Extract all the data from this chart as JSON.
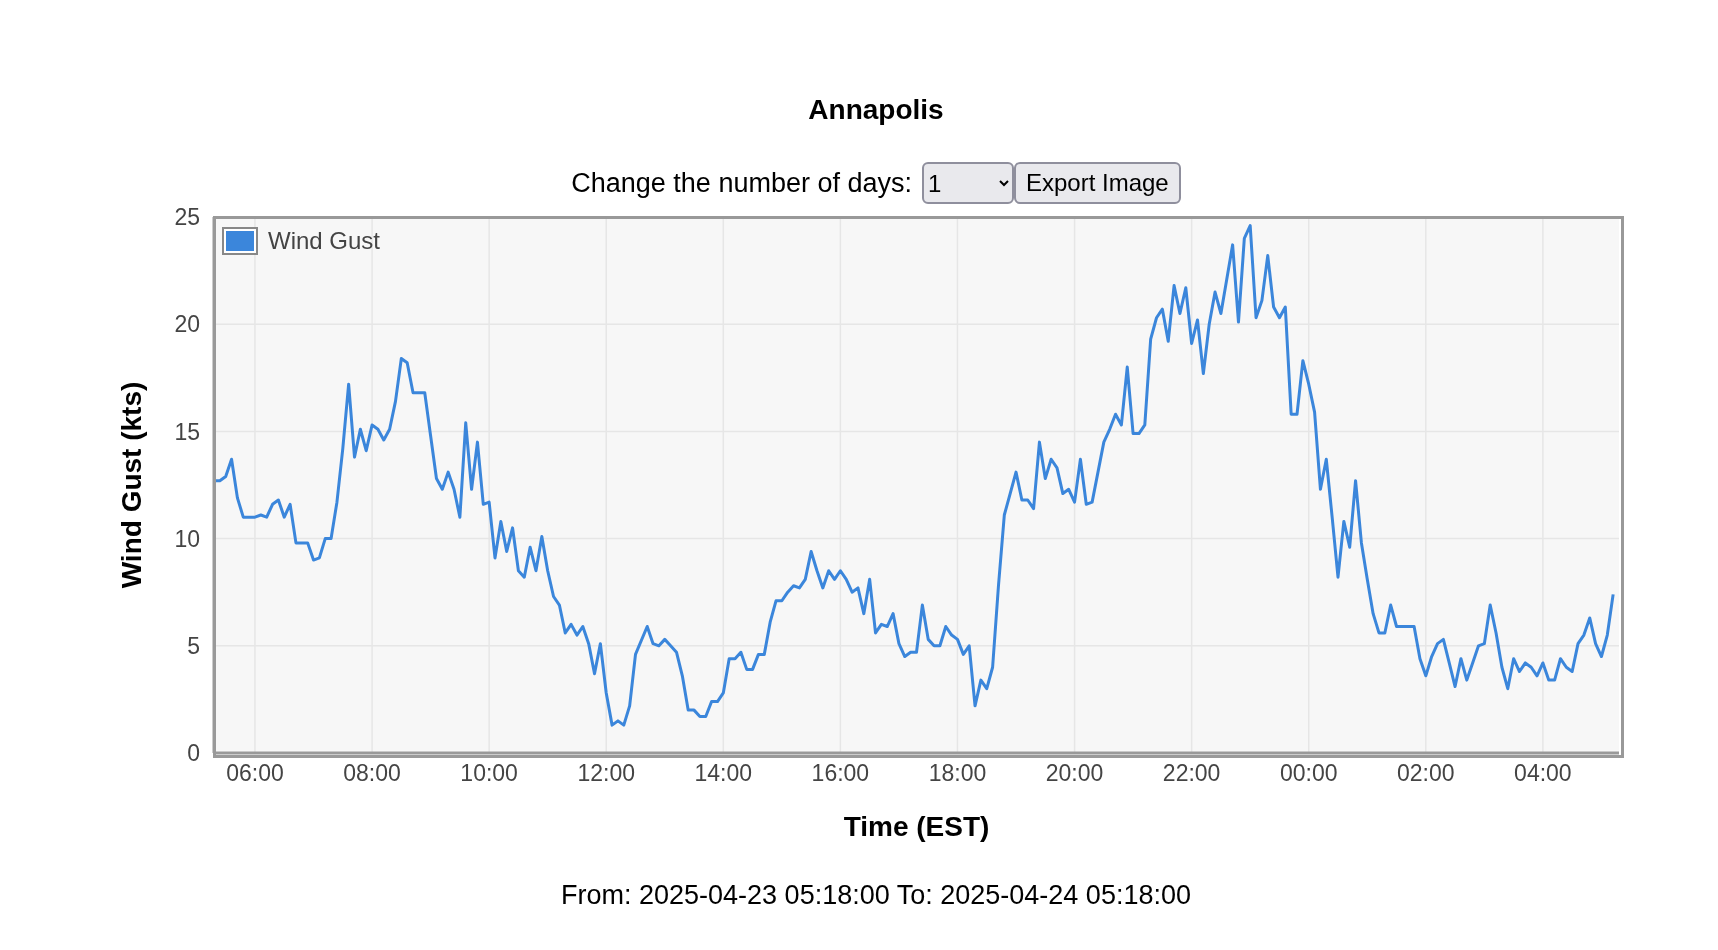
{
  "chart_data": {
    "type": "line",
    "title": "Annapolis",
    "xlabel": "Time (EST)",
    "ylabel": "Wind Gust (kts)",
    "annotations": [
      "Change the number of days:",
      "1",
      "Export Image",
      "From: 2025-04-23 05:18:00 To: 2025-04-24 05:18:00"
    ],
    "xlim": [
      "2025-04-23T05:18",
      "2025-04-24T05:18"
    ],
    "xticks": [
      {
        "value": "2025-04-23T06:00",
        "label": "06:00"
      },
      {
        "value": "2025-04-23T08:00",
        "label": "08:00"
      },
      {
        "value": "2025-04-23T10:00",
        "label": "10:00"
      },
      {
        "value": "2025-04-23T12:00",
        "label": "12:00"
      },
      {
        "value": "2025-04-23T14:00",
        "label": "14:00"
      },
      {
        "value": "2025-04-23T16:00",
        "label": "16:00"
      },
      {
        "value": "2025-04-23T18:00",
        "label": "18:00"
      },
      {
        "value": "2025-04-23T20:00",
        "label": "20:00"
      },
      {
        "value": "2025-04-23T22:00",
        "label": "22:00"
      },
      {
        "value": "2025-04-24T00:00",
        "label": "00:00"
      },
      {
        "value": "2025-04-24T02:00",
        "label": "02:00"
      },
      {
        "value": "2025-04-24T04:00",
        "label": "04:00"
      }
    ],
    "ylim": [
      0,
      25
    ],
    "yticks": [
      0,
      5,
      10,
      15,
      20,
      25
    ],
    "grid": true,
    "legend": "top left",
    "marker": "none",
    "line_style": "solid",
    "series": [
      {
        "name": "Wind Gust",
        "color": "#3b86db",
        "x": [
          "2025-04-23T05:18",
          "2025-04-23T05:24",
          "2025-04-23T05:30",
          "2025-04-23T05:36",
          "2025-04-23T05:42",
          "2025-04-23T05:48",
          "2025-04-23T06:00",
          "2025-04-23T06:06",
          "2025-04-23T06:12",
          "2025-04-23T06:18",
          "2025-04-23T06:24",
          "2025-04-23T06:30",
          "2025-04-23T06:36",
          "2025-04-23T06:42",
          "2025-04-23T06:54",
          "2025-04-23T07:00",
          "2025-04-23T07:06",
          "2025-04-23T07:12",
          "2025-04-23T07:18",
          "2025-04-23T07:24",
          "2025-04-23T07:30",
          "2025-04-23T07:36",
          "2025-04-23T07:42",
          "2025-04-23T07:48",
          "2025-04-23T07:54",
          "2025-04-23T08:00",
          "2025-04-23T08:06",
          "2025-04-23T08:12",
          "2025-04-23T08:18",
          "2025-04-23T08:24",
          "2025-04-23T08:30",
          "2025-04-23T08:36",
          "2025-04-23T08:42",
          "2025-04-23T08:54",
          "2025-04-23T09:00",
          "2025-04-23T09:06",
          "2025-04-23T09:12",
          "2025-04-23T09:18",
          "2025-04-23T09:24",
          "2025-04-23T09:30",
          "2025-04-23T09:36",
          "2025-04-23T09:42",
          "2025-04-23T09:48",
          "2025-04-23T09:54",
          "2025-04-23T10:00",
          "2025-04-23T10:06",
          "2025-04-23T10:12",
          "2025-04-23T10:18",
          "2025-04-23T10:24",
          "2025-04-23T10:30",
          "2025-04-23T10:36",
          "2025-04-23T10:42",
          "2025-04-23T10:48",
          "2025-04-23T10:54",
          "2025-04-23T11:00",
          "2025-04-23T11:06",
          "2025-04-23T11:12",
          "2025-04-23T11:18",
          "2025-04-23T11:24",
          "2025-04-23T11:30",
          "2025-04-23T11:36",
          "2025-04-23T11:42",
          "2025-04-23T11:48",
          "2025-04-23T11:54",
          "2025-04-23T12:00",
          "2025-04-23T12:06",
          "2025-04-23T12:12",
          "2025-04-23T12:18",
          "2025-04-23T12:24",
          "2025-04-23T12:30",
          "2025-04-23T12:42",
          "2025-04-23T12:48",
          "2025-04-23T12:54",
          "2025-04-23T13:00",
          "2025-04-23T13:06",
          "2025-04-23T13:12",
          "2025-04-23T13:18",
          "2025-04-23T13:24",
          "2025-04-23T13:30",
          "2025-04-23T13:36",
          "2025-04-23T13:42",
          "2025-04-23T13:48",
          "2025-04-23T13:54",
          "2025-04-23T14:00",
          "2025-04-23T14:06",
          "2025-04-23T14:12",
          "2025-04-23T14:18",
          "2025-04-23T14:24",
          "2025-04-23T14:30",
          "2025-04-23T14:36",
          "2025-04-23T14:42",
          "2025-04-23T14:48",
          "2025-04-23T14:54",
          "2025-04-23T15:00",
          "2025-04-23T15:06",
          "2025-04-23T15:12",
          "2025-04-23T15:18",
          "2025-04-23T15:24",
          "2025-04-23T15:30",
          "2025-04-23T15:36",
          "2025-04-23T15:42",
          "2025-04-23T15:48",
          "2025-04-23T15:54",
          "2025-04-23T16:00",
          "2025-04-23T16:06",
          "2025-04-23T16:12",
          "2025-04-23T16:18",
          "2025-04-23T16:24",
          "2025-04-23T16:30",
          "2025-04-23T16:36",
          "2025-04-23T16:42",
          "2025-04-23T16:48",
          "2025-04-23T16:54",
          "2025-04-23T17:00",
          "2025-04-23T17:06",
          "2025-04-23T17:12",
          "2025-04-23T17:18",
          "2025-04-23T17:24",
          "2025-04-23T17:30",
          "2025-04-23T17:36",
          "2025-04-23T17:42",
          "2025-04-23T17:48",
          "2025-04-23T17:54",
          "2025-04-23T18:00",
          "2025-04-23T18:06",
          "2025-04-23T18:12",
          "2025-04-23T18:18",
          "2025-04-23T18:24",
          "2025-04-23T18:30",
          "2025-04-23T18:36",
          "2025-04-23T18:42",
          "2025-04-23T18:48",
          "2025-04-23T18:54",
          "2025-04-23T19:00",
          "2025-04-23T19:06",
          "2025-04-23T19:12",
          "2025-04-23T19:18",
          "2025-04-23T19:24",
          "2025-04-23T19:30",
          "2025-04-23T19:36",
          "2025-04-23T19:42",
          "2025-04-23T19:48",
          "2025-04-23T19:54",
          "2025-04-23T20:00",
          "2025-04-23T20:06",
          "2025-04-23T20:12",
          "2025-04-23T20:18",
          "2025-04-23T20:24",
          "2025-04-23T20:30",
          "2025-04-23T20:36",
          "2025-04-23T20:42",
          "2025-04-23T20:48",
          "2025-04-23T20:54",
          "2025-04-23T21:00",
          "2025-04-23T21:06",
          "2025-04-23T21:12",
          "2025-04-23T21:18",
          "2025-04-23T21:24",
          "2025-04-23T21:30",
          "2025-04-23T21:36",
          "2025-04-23T21:42",
          "2025-04-23T21:48",
          "2025-04-23T21:54",
          "2025-04-23T22:00",
          "2025-04-23T22:06",
          "2025-04-23T22:12",
          "2025-04-23T22:18",
          "2025-04-23T22:24",
          "2025-04-23T22:30",
          "2025-04-23T22:36",
          "2025-04-23T22:42",
          "2025-04-23T22:48",
          "2025-04-23T22:54",
          "2025-04-23T23:00",
          "2025-04-23T23:06",
          "2025-04-23T23:12",
          "2025-04-23T23:18",
          "2025-04-23T23:24",
          "2025-04-23T23:30",
          "2025-04-23T23:36",
          "2025-04-23T23:42",
          "2025-04-23T23:48",
          "2025-04-23T23:54",
          "2025-04-24T00:00",
          "2025-04-24T00:06",
          "2025-04-24T00:12",
          "2025-04-24T00:18",
          "2025-04-24T00:24",
          "2025-04-24T00:30",
          "2025-04-24T00:36",
          "2025-04-24T00:42",
          "2025-04-24T00:48",
          "2025-04-24T00:54",
          "2025-04-24T01:00",
          "2025-04-24T01:06",
          "2025-04-24T01:12",
          "2025-04-24T01:18",
          "2025-04-24T01:24",
          "2025-04-24T01:30",
          "2025-04-24T01:36",
          "2025-04-24T01:42",
          "2025-04-24T01:48",
          "2025-04-24T01:54",
          "2025-04-24T02:00",
          "2025-04-24T02:06",
          "2025-04-24T02:12",
          "2025-04-24T02:18",
          "2025-04-24T02:24",
          "2025-04-24T02:30",
          "2025-04-24T02:36",
          "2025-04-24T02:42",
          "2025-04-24T02:48",
          "2025-04-24T02:54",
          "2025-04-24T03:00",
          "2025-04-24T03:06",
          "2025-04-24T03:12",
          "2025-04-24T03:18",
          "2025-04-24T03:24",
          "2025-04-24T03:30",
          "2025-04-24T03:36",
          "2025-04-24T03:42",
          "2025-04-24T03:48",
          "2025-04-24T03:54",
          "2025-04-24T04:00",
          "2025-04-24T04:06",
          "2025-04-24T04:12",
          "2025-04-24T04:18",
          "2025-04-24T04:24",
          "2025-04-24T04:30",
          "2025-04-24T04:36",
          "2025-04-24T04:42",
          "2025-04-24T04:48",
          "2025-04-24T04:54",
          "2025-04-24T05:00",
          "2025-04-24T05:06",
          "2025-04-24T05:12"
        ],
        "values": [
          12.7,
          12.7,
          12.9,
          13.7,
          11.9,
          11.0,
          11.0,
          11.1,
          11.0,
          11.6,
          11.8,
          11.0,
          11.6,
          9.8,
          9.8,
          9.0,
          9.1,
          10.0,
          10.0,
          11.7,
          14.2,
          17.2,
          13.8,
          15.1,
          14.1,
          15.3,
          15.1,
          14.6,
          15.1,
          16.4,
          18.4,
          18.2,
          16.8,
          16.8,
          14.8,
          12.8,
          12.3,
          13.1,
          12.3,
          11.0,
          15.4,
          12.3,
          14.5,
          11.6,
          11.7,
          9.1,
          10.8,
          9.4,
          10.5,
          8.5,
          8.2,
          9.6,
          8.5,
          10.1,
          8.5,
          7.3,
          6.9,
          5.6,
          6.0,
          5.5,
          5.9,
          5.1,
          3.7,
          5.1,
          2.8,
          1.3,
          1.5,
          1.3,
          2.2,
          4.6,
          5.9,
          5.1,
          5.0,
          5.3,
          5.0,
          4.7,
          3.6,
          2.0,
          2.0,
          1.7,
          1.7,
          2.4,
          2.4,
          2.8,
          4.4,
          4.4,
          4.7,
          3.9,
          3.9,
          4.6,
          4.6,
          6.1,
          7.1,
          7.1,
          7.5,
          7.8,
          7.7,
          8.1,
          9.4,
          8.5,
          7.7,
          8.5,
          8.1,
          8.5,
          8.1,
          7.5,
          7.7,
          6.5,
          8.1,
          5.6,
          6.0,
          5.9,
          6.5,
          5.1,
          4.5,
          4.7,
          4.7,
          6.9,
          5.3,
          5.0,
          5.0,
          5.9,
          5.5,
          5.3,
          4.6,
          5.0,
          2.2,
          3.4,
          3.0,
          4.0,
          7.8,
          11.1,
          12.1,
          13.1,
          11.8,
          11.8,
          11.4,
          14.5,
          12.8,
          13.7,
          13.3,
          12.1,
          12.3,
          11.7,
          13.7,
          11.6,
          11.7,
          13.1,
          14.5,
          15.1,
          15.8,
          15.3,
          18.0,
          14.9,
          14.9,
          15.3,
          19.3,
          20.3,
          20.7,
          19.2,
          21.8,
          20.5,
          21.7,
          19.1,
          20.2,
          17.7,
          20.0,
          21.5,
          20.5,
          22.1,
          23.7,
          20.1,
          24.0,
          24.6,
          20.3,
          21.1,
          23.2,
          20.8,
          20.3,
          20.8,
          15.8,
          15.8,
          18.3,
          17.2,
          15.9,
          12.3,
          13.7,
          11.0,
          8.2,
          10.8,
          9.6,
          12.7,
          9.8,
          8.1,
          6.5,
          5.6,
          5.6,
          6.9,
          5.9,
          5.9,
          5.9,
          5.9,
          4.4,
          3.6,
          4.5,
          5.1,
          5.3,
          4.2,
          3.1,
          4.4,
          3.4,
          4.2,
          5.0,
          5.1,
          6.9,
          5.6,
          4.0,
          3.0,
          4.4,
          3.8,
          4.2,
          4.0,
          3.6,
          4.2,
          3.4,
          3.4,
          4.4,
          4.0,
          3.8,
          5.1,
          5.5,
          6.3,
          5.1,
          4.5,
          5.5,
          7.4
        ]
      }
    ]
  }
}
